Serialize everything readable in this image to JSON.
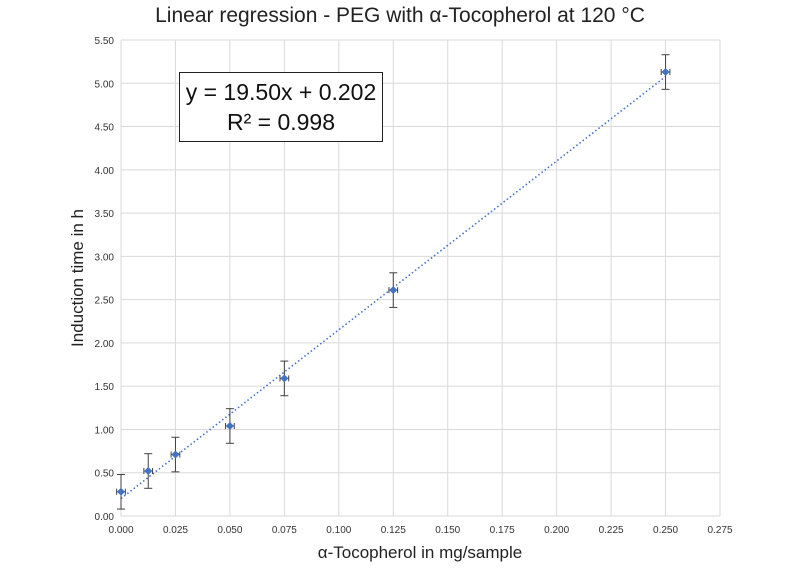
{
  "chart_data": {
    "type": "scatter",
    "title": "Linear regression - PEG with α-Tocopherol at 120 °C",
    "xlabel": "α-Tocopherol in mg/sample",
    "ylabel": "Induction time in h",
    "xlim": [
      0,
      0.275
    ],
    "ylim": [
      0,
      5.5
    ],
    "x_ticks": [
      "0.000",
      "0.025",
      "0.050",
      "0.075",
      "0.100",
      "0.125",
      "0.150",
      "0.175",
      "0.200",
      "0.225",
      "0.250",
      "0.275"
    ],
    "y_ticks": [
      "0.00",
      "0.50",
      "1.00",
      "1.50",
      "2.00",
      "2.50",
      "3.00",
      "3.50",
      "4.00",
      "4.50",
      "5.00",
      "5.50"
    ],
    "grid": true,
    "series": [
      {
        "x": [
          0.0,
          0.0125,
          0.025,
          0.05,
          0.075,
          0.125,
          0.25
        ],
        "y": [
          0.28,
          0.52,
          0.71,
          1.04,
          1.59,
          2.61,
          5.13
        ],
        "y_error": [
          0.2,
          0.2,
          0.2,
          0.2,
          0.2,
          0.2,
          0.2
        ],
        "x_error": [
          0.002,
          0.002,
          0.002,
          0.002,
          0.002,
          0.002,
          0.002
        ],
        "color": "#4472C4"
      }
    ],
    "trendline": {
      "type": "linear",
      "slope": 19.5,
      "intercept": 0.202,
      "style": "dotted",
      "color": "#4472C4"
    },
    "annotations": {
      "equation": "y = 19.50x + 0.202",
      "r_squared": "R² = 0.998"
    }
  }
}
